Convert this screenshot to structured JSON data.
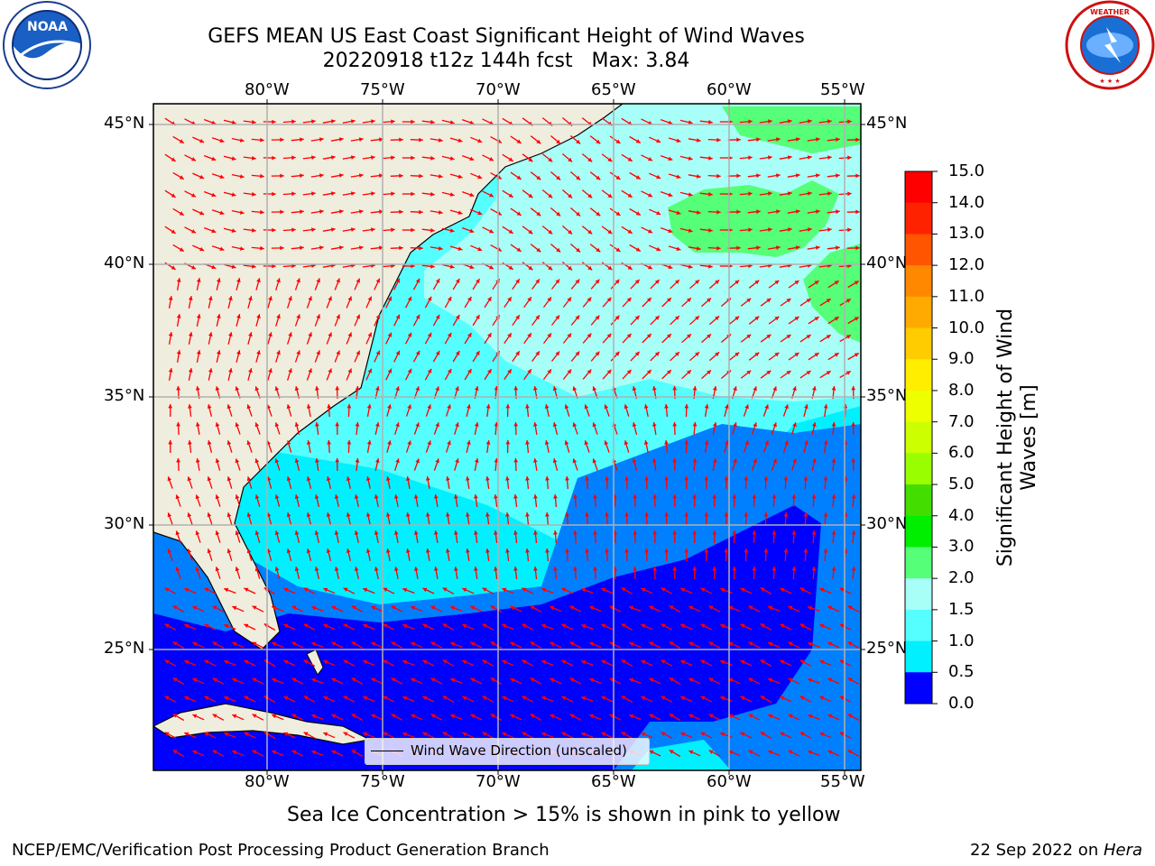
{
  "header": {
    "title_line1": "GEFS MEAN US East Coast Significant Height of Wind Waves",
    "title_line2": "20220918 t12z 144h fcst   Max: 3.84"
  },
  "logos": {
    "left": {
      "name": "noaa-logo",
      "text": "NOAA",
      "ring_text": "NATIONAL OCEANIC AND ATMOSPHERIC ADMINISTRATION · U.S. DEPARTMENT OF COMMERCE"
    },
    "right": {
      "name": "nws-logo",
      "ring_text": "NATIONAL WEATHER SERVICE"
    }
  },
  "map": {
    "lon_ticks_top": [
      "80°W",
      "75°W",
      "70°W",
      "65°W",
      "60°W",
      "55°W"
    ],
    "lon_ticks_bottom": [
      "80°W",
      "75°W",
      "70°W",
      "65°W",
      "60°W",
      "55°W"
    ],
    "lat_ticks_left": [
      "45°N",
      "40°N",
      "35°N",
      "30°N",
      "25°N"
    ],
    "lat_ticks_right": [
      "45°N",
      "40°N",
      "35°N",
      "30°N",
      "25°N"
    ],
    "legend_label": "Wind Wave Direction (unscaled)",
    "arrow_color": "#ff0000",
    "land_color": "#efedde"
  },
  "colorbar": {
    "label": "Significant Height of Wind Waves [m]",
    "ticks": [
      "15.0",
      "14.0",
      "13.0",
      "12.0",
      "11.0",
      "10.0",
      "9.0",
      "8.0",
      "7.0",
      "6.0",
      "5.0",
      "4.0",
      "3.0",
      "2.0",
      "1.5",
      "1.0",
      "0.5",
      "0.0"
    ],
    "colors_top_to_bottom": [
      "#ff0000",
      "#ff2200",
      "#ff5500",
      "#ff8800",
      "#ffaa00",
      "#ffcc00",
      "#ffee00",
      "#eeff00",
      "#ccff00",
      "#99ff00",
      "#44dd00",
      "#00ee00",
      "#55ff77",
      "#a8fff8",
      "#55ffff",
      "#00f0ff",
      "#0080ff",
      "#0000ff"
    ]
  },
  "footer": {
    "note": "Sea Ice Concentration > 15% is shown in pink to yellow",
    "credit": "NCEP/EMC/Verification Post Processing Product Generation Branch",
    "date": "22 Sep 2022 on ",
    "machine": "Hera"
  }
}
